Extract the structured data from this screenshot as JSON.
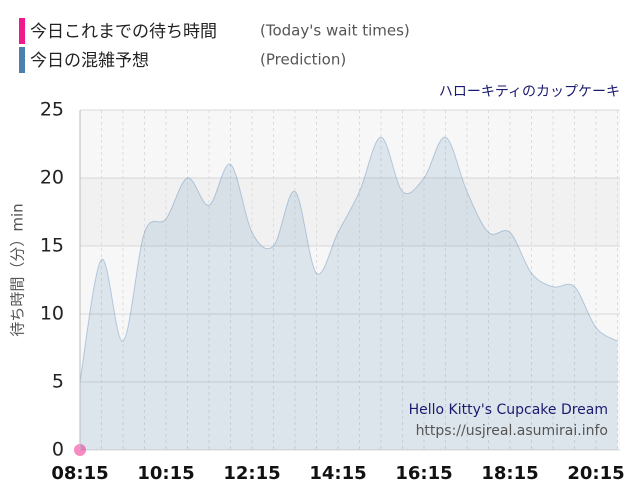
{
  "chart_data": {
    "type": "area",
    "title": "ハローキティのカップケーキ",
    "y_label": "待ち時間（分）min",
    "annotations": [
      "Hello Kitty's Cupcake Dream",
      "https://usjreal.asumirai.info"
    ],
    "categories": [
      "08:15",
      null,
      null,
      null,
      "10:15",
      null,
      null,
      null,
      "12:15",
      null,
      null,
      null,
      "14:15",
      null,
      null,
      null,
      "16:15",
      null,
      null,
      null,
      "18:15",
      null,
      null,
      null,
      "20:15",
      null
    ],
    "series": [
      {
        "name": "今日これまでの待ち時間",
        "legend_note": "(Today's wait times)",
        "color": "#f0198c",
        "values": [
          0,
          null,
          null,
          null,
          null,
          null,
          null,
          null,
          null,
          null,
          null,
          null,
          null,
          null,
          null,
          null,
          null,
          null,
          null,
          null,
          null,
          null,
          null,
          null,
          null,
          null
        ]
      },
      {
        "name": "今日の混雑予想",
        "legend_note": "(Prediction)",
        "color": "#4a7fae",
        "values": [
          5,
          14,
          8,
          16,
          17,
          20,
          18,
          21,
          16,
          15,
          19,
          13,
          16,
          19,
          23,
          19,
          20,
          23,
          19,
          16,
          16,
          13,
          12,
          12,
          9,
          8
        ]
      }
    ],
    "ylim": [
      0,
      25
    ],
    "yticks": [
      0,
      5,
      10,
      15,
      20,
      25
    ],
    "grid": true
  }
}
